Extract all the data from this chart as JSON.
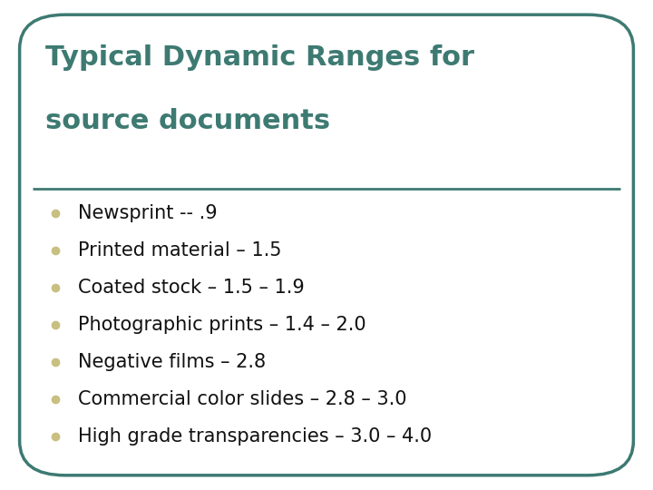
{
  "title_line1": "Typical Dynamic Ranges for",
  "title_line2": "source documents",
  "title_color": "#3d7a72",
  "title_fontsize": 22,
  "title_fontweight": "bold",
  "bg_color": "#ffffff",
  "border_color": "#3d7a72",
  "border_linewidth": 2.5,
  "divider_color": "#3d7a72",
  "divider_linewidth": 2.0,
  "bullet_color": "#c8bf80",
  "bullet_items": [
    "Newsprint -- .9",
    "Printed material – 1.5",
    "Coated stock – 1.5 – 1.9",
    "Photographic prints – 1.4 – 2.0",
    "Negative films – 2.8",
    "Commercial color slides – 2.8 – 3.0",
    "High grade transparencies – 3.0 – 4.0"
  ],
  "bullet_fontsize": 15,
  "text_color": "#111111",
  "bullet_marker": "o",
  "bullet_marker_size": 7,
  "fig_width": 7.2,
  "fig_height": 5.4,
  "dpi": 100
}
